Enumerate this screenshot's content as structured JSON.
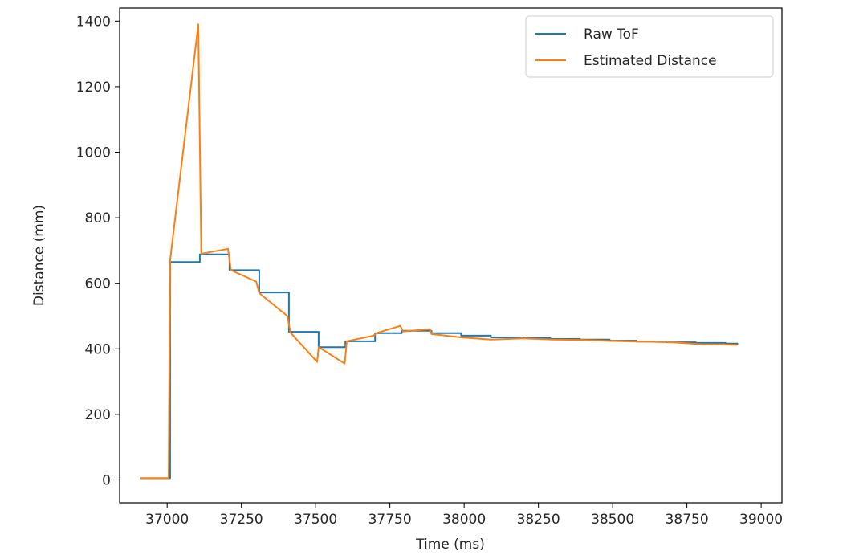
{
  "chart_data": {
    "type": "line",
    "title": "",
    "xlabel": "Time (ms)",
    "ylabel": "Distance (mm)",
    "xlim": [
      36840,
      39070
    ],
    "ylim": [
      -70,
      1440
    ],
    "xticks": [
      37000,
      37250,
      37500,
      37750,
      38000,
      38250,
      38500,
      38750,
      39000
    ],
    "yticks": [
      0,
      200,
      400,
      600,
      800,
      1000,
      1200,
      1400
    ],
    "grid": false,
    "legend_position": "top-right",
    "series": [
      {
        "name": "Raw ToF",
        "color": "#1f77b4",
        "step": true,
        "x": [
          36910,
          37010,
          37110,
          37210,
          37310,
          37410,
          37510,
          37600,
          37700,
          37790,
          37890,
          37990,
          38090,
          38190,
          38290,
          38390,
          38490,
          38580,
          38680,
          38780,
          38880,
          38920
        ],
        "y": [
          5,
          665,
          688,
          640,
          572,
          452,
          405,
          423,
          448,
          455,
          448,
          440,
          435,
          433,
          430,
          428,
          425,
          422,
          420,
          418,
          416,
          412
        ]
      },
      {
        "name": "Estimated Distance",
        "color": "#ff7f0e",
        "step": false,
        "x": [
          36910,
          37005,
          37010,
          37105,
          37115,
          37205,
          37215,
          37300,
          37310,
          37405,
          37415,
          37505,
          37510,
          37598,
          37605,
          37695,
          37705,
          37785,
          37795,
          37885,
          37890,
          37990,
          38090,
          38200,
          38300,
          38400,
          38500,
          38600,
          38700,
          38800,
          38920
        ],
        "y": [
          5,
          5,
          670,
          1390,
          690,
          705,
          640,
          605,
          570,
          500,
          450,
          360,
          405,
          355,
          423,
          440,
          448,
          470,
          453,
          460,
          445,
          435,
          428,
          432,
          428,
          427,
          424,
          422,
          420,
          414,
          412
        ]
      }
    ]
  }
}
